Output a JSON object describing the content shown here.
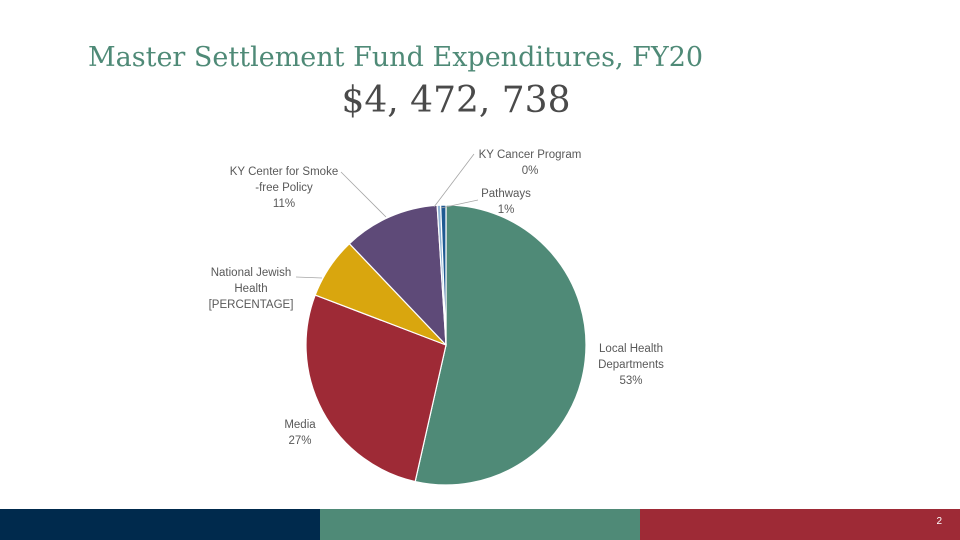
{
  "slide": {
    "title": "Master Settlement Fund Expenditures, FY20",
    "amount": "$4, 472, 738",
    "page_number": "2"
  },
  "footer": {
    "colors": [
      "#002a4d",
      "#4f8a77",
      "#9e2a36"
    ]
  },
  "chart_data": {
    "type": "pie",
    "title": "",
    "slices": [
      {
        "name": "Local Health Departments",
        "label_lines": [
          "Local Health",
          "Departments"
        ],
        "pct_label": "53%",
        "value": 53,
        "color": "#4f8a77"
      },
      {
        "name": "Media",
        "label_lines": [
          "Media"
        ],
        "pct_label": "27%",
        "value": 27,
        "color": "#9e2a36"
      },
      {
        "name": "National Jewish Health",
        "label_lines": [
          "National Jewish",
          "Health"
        ],
        "pct_label": "[PERCENTAGE]",
        "value": 7,
        "color": "#d9a60e"
      },
      {
        "name": "KY Center for Smoke-free Policy",
        "label_lines": [
          "KY Center for Smoke",
          "-free Policy"
        ],
        "pct_label": "11%",
        "value": 11,
        "color": "#5e4a78"
      },
      {
        "name": "KY Cancer Program",
        "label_lines": [
          "KY Cancer Program"
        ],
        "pct_label": "0%",
        "value": 0.4,
        "color": "#8fb4d4"
      },
      {
        "name": "Pathways",
        "label_lines": [
          "Pathways"
        ],
        "pct_label": "1%",
        "value": 0.6,
        "color": "#1f5a92"
      }
    ]
  }
}
